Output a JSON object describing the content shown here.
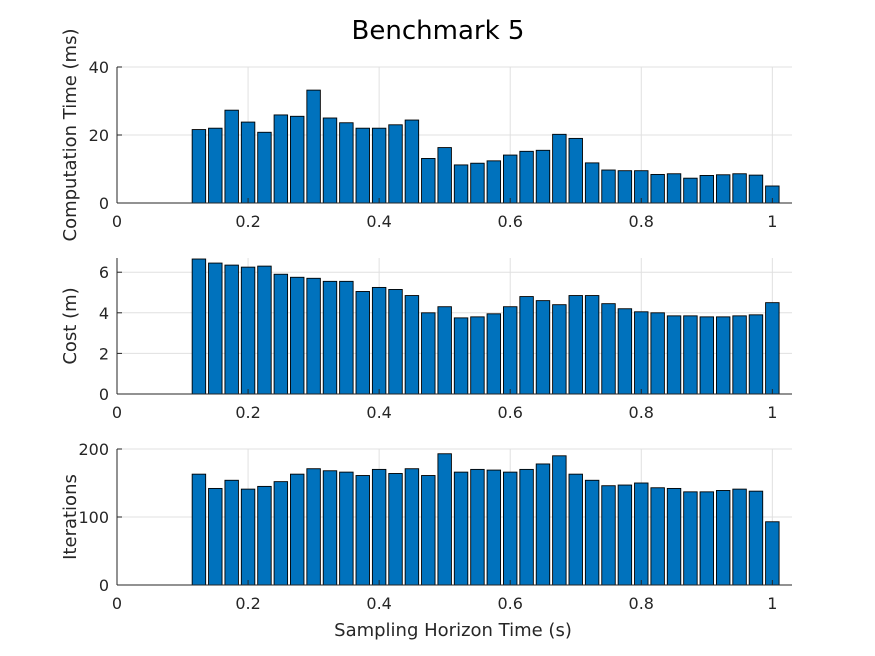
{
  "title": "Benchmark 5",
  "xlabel": "Sampling Horizon Time (s)",
  "colors": {
    "bar": "#0072BD",
    "edge": "#000000",
    "grid": "#e0e0e0",
    "axis": "#262626"
  },
  "chart_data": [
    {
      "type": "bar",
      "ylabel": "Computation Time (ms)",
      "xlim": [
        0,
        1.03
      ],
      "ylim": [
        0,
        40
      ],
      "xticks": [
        0,
        0.2,
        0.4,
        0.6,
        0.8,
        1
      ],
      "xtick_labels": [
        "0",
        "0.2",
        "0.4",
        "0.6",
        "0.8",
        "1"
      ],
      "yticks": [
        0,
        20,
        40
      ],
      "ytick_labels": [
        "0",
        "20",
        "40"
      ],
      "grid": true,
      "x": [
        0.125,
        0.15,
        0.175,
        0.2,
        0.225,
        0.25,
        0.275,
        0.3,
        0.325,
        0.35,
        0.375,
        0.4,
        0.425,
        0.45,
        0.475,
        0.5,
        0.525,
        0.55,
        0.575,
        0.6,
        0.625,
        0.65,
        0.675,
        0.7,
        0.725,
        0.75,
        0.775,
        0.8,
        0.825,
        0.85,
        0.875,
        0.9,
        0.925,
        0.95,
        0.975,
        1.0
      ],
      "values": [
        21.6,
        22.0,
        27.3,
        23.8,
        20.8,
        25.9,
        25.5,
        33.2,
        25.0,
        23.6,
        22.0,
        22.0,
        23.0,
        24.4,
        13.1,
        16.3,
        11.2,
        11.7,
        12.4,
        14.1,
        15.2,
        15.5,
        20.2,
        19.0,
        11.8,
        9.7,
        9.5,
        9.5,
        8.4,
        8.6,
        7.3,
        8.1,
        8.3,
        8.6,
        8.2,
        5.0
      ]
    },
    {
      "type": "bar",
      "ylabel": "Cost (m)",
      "xlim": [
        0,
        1.03
      ],
      "ylim": [
        0,
        6.7
      ],
      "xticks": [
        0,
        0.2,
        0.4,
        0.6,
        0.8,
        1
      ],
      "xtick_labels": [
        "0",
        "0.2",
        "0.4",
        "0.6",
        "0.8",
        "1"
      ],
      "yticks": [
        0,
        2,
        4,
        6
      ],
      "ytick_labels": [
        "0",
        "2",
        "4",
        "6"
      ],
      "grid": true,
      "x": [
        0.125,
        0.15,
        0.175,
        0.2,
        0.225,
        0.25,
        0.275,
        0.3,
        0.325,
        0.35,
        0.375,
        0.4,
        0.425,
        0.45,
        0.475,
        0.5,
        0.525,
        0.55,
        0.575,
        0.6,
        0.625,
        0.65,
        0.675,
        0.7,
        0.725,
        0.75,
        0.775,
        0.8,
        0.825,
        0.85,
        0.875,
        0.9,
        0.925,
        0.95,
        0.975,
        1.0
      ],
      "values": [
        6.65,
        6.45,
        6.35,
        6.25,
        6.3,
        5.9,
        5.75,
        5.7,
        5.55,
        5.55,
        5.05,
        5.25,
        5.15,
        4.85,
        4.0,
        4.3,
        3.75,
        3.8,
        3.95,
        4.3,
        4.8,
        4.6,
        4.4,
        4.85,
        4.85,
        4.45,
        4.2,
        4.05,
        4.0,
        3.85,
        3.85,
        3.8,
        3.8,
        3.85,
        3.9,
        4.5
      ]
    },
    {
      "type": "bar",
      "ylabel": "Iterations",
      "xlim": [
        0,
        1.03
      ],
      "ylim": [
        0,
        200
      ],
      "xticks": [
        0,
        0.2,
        0.4,
        0.6,
        0.8,
        1
      ],
      "xtick_labels": [
        "0",
        "0.2",
        "0.4",
        "0.6",
        "0.8",
        "1"
      ],
      "yticks": [
        0,
        100,
        200
      ],
      "ytick_labels": [
        "0",
        "100",
        "200"
      ],
      "grid": true,
      "x": [
        0.125,
        0.15,
        0.175,
        0.2,
        0.225,
        0.25,
        0.275,
        0.3,
        0.325,
        0.35,
        0.375,
        0.4,
        0.425,
        0.45,
        0.475,
        0.5,
        0.525,
        0.55,
        0.575,
        0.6,
        0.625,
        0.65,
        0.675,
        0.7,
        0.725,
        0.75,
        0.775,
        0.8,
        0.825,
        0.85,
        0.875,
        0.9,
        0.925,
        0.95,
        0.975,
        1.0
      ],
      "values": [
        163,
        142,
        154,
        141,
        145,
        152,
        163,
        171,
        168,
        166,
        161,
        170,
        164,
        171,
        161,
        193,
        166,
        170,
        169,
        166,
        170,
        178,
        190,
        163,
        154,
        146,
        147,
        150,
        143,
        142,
        137,
        137,
        139,
        141,
        138,
        93
      ]
    }
  ]
}
